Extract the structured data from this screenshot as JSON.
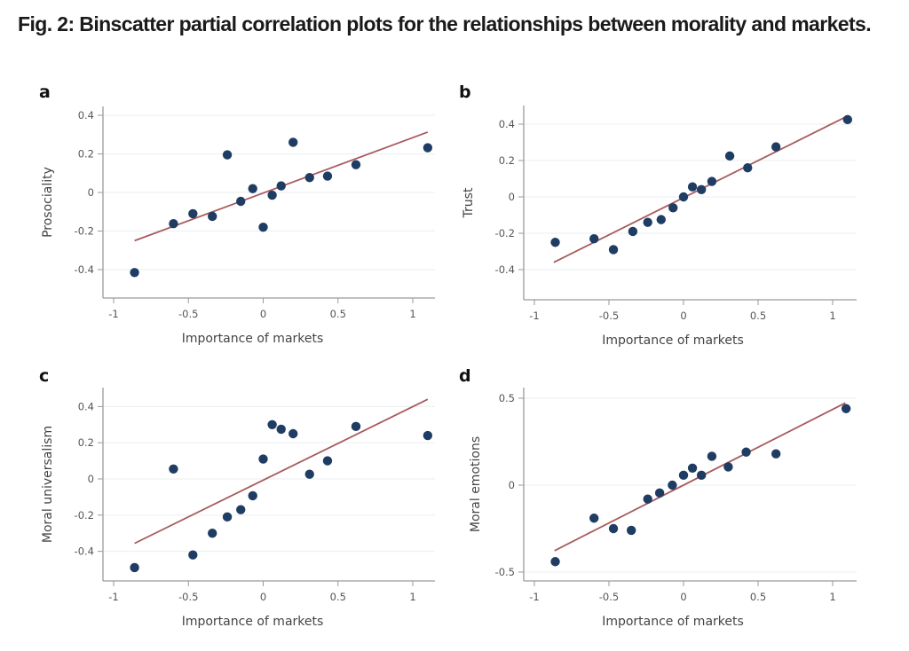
{
  "figure": {
    "title": "Fig. 2: Binscatter partial correlation plots for the relationships between morality and markets.",
    "colors": {
      "points": "#1f3d63",
      "fit_line": "#a85a5e",
      "axis": "#9a9a9a",
      "grid": "#eef1f2",
      "text": "#555555"
    }
  },
  "chart_data": [
    {
      "panel": "a",
      "type": "scatter",
      "title": "",
      "xlabel": "Importance of markets",
      "ylabel": "Prosociality",
      "xticks": [
        -1,
        -0.5,
        0,
        0.5,
        1
      ],
      "xtick_labels": [
        "-1",
        "-0.5",
        "0",
        "0.5",
        "1"
      ],
      "yticks": [
        -0.4,
        -0.2,
        0,
        0.2,
        0.4
      ],
      "ytick_labels": [
        "-0.4",
        "-0.2",
        "0",
        "0.2",
        "0.4"
      ],
      "grid": true,
      "points": [
        [
          -0.86,
          -0.415
        ],
        [
          -0.6,
          -0.162
        ],
        [
          -0.47,
          -0.11
        ],
        [
          -0.34,
          -0.124
        ],
        [
          -0.24,
          0.195
        ],
        [
          -0.15,
          -0.046
        ],
        [
          -0.07,
          0.02
        ],
        [
          0.0,
          -0.18
        ],
        [
          0.06,
          -0.014
        ],
        [
          0.12,
          0.034
        ],
        [
          0.2,
          0.26
        ],
        [
          0.31,
          0.077
        ],
        [
          0.43,
          0.085
        ],
        [
          0.62,
          0.144
        ],
        [
          1.1,
          0.232
        ]
      ],
      "fit_line": [
        [
          -0.86,
          -0.25
        ],
        [
          1.1,
          0.313
        ]
      ]
    },
    {
      "panel": "b",
      "type": "scatter",
      "title": "",
      "xlabel": "Importance of markets",
      "ylabel": "Trust",
      "xticks": [
        -1,
        -0.5,
        0,
        0.5,
        1
      ],
      "xtick_labels": [
        "-1",
        "-0.5",
        "0",
        "0.5",
        "1"
      ],
      "yticks": [
        -0.4,
        -0.2,
        0,
        0.2,
        0.4
      ],
      "ytick_labels": [
        "-0.4",
        "-0.2",
        "0",
        "0.2",
        "0.4"
      ],
      "grid": true,
      "points": [
        [
          -0.86,
          -0.25
        ],
        [
          -0.6,
          -0.23
        ],
        [
          -0.47,
          -0.29
        ],
        [
          -0.34,
          -0.19
        ],
        [
          -0.24,
          -0.14
        ],
        [
          -0.15,
          -0.125
        ],
        [
          -0.07,
          -0.06
        ],
        [
          0.0,
          0.0
        ],
        [
          0.06,
          0.055
        ],
        [
          0.12,
          0.04
        ],
        [
          0.19,
          0.085
        ],
        [
          0.31,
          0.225
        ],
        [
          0.43,
          0.16
        ],
        [
          0.62,
          0.275
        ],
        [
          1.1,
          0.425
        ]
      ],
      "fit_line": [
        [
          -0.87,
          -0.36
        ],
        [
          1.1,
          0.445
        ]
      ]
    },
    {
      "panel": "c",
      "type": "scatter",
      "title": "",
      "xlabel": "Importance of markets",
      "ylabel": "Moral universalism",
      "xticks": [
        -1,
        -0.5,
        0,
        0.5,
        1
      ],
      "xtick_labels": [
        "-1",
        "-0.5",
        "0",
        "0.5",
        "1"
      ],
      "yticks": [
        -0.4,
        -0.2,
        0,
        0.2,
        0.4
      ],
      "ytick_labels": [
        "-0.4",
        "-0.2",
        "0",
        "0.2",
        "0.4"
      ],
      "grid": true,
      "points": [
        [
          -0.86,
          -0.49
        ],
        [
          -0.6,
          0.055
        ],
        [
          -0.47,
          -0.42
        ],
        [
          -0.34,
          -0.3
        ],
        [
          -0.24,
          -0.21
        ],
        [
          -0.15,
          -0.17
        ],
        [
          -0.07,
          -0.093
        ],
        [
          0.0,
          0.11
        ],
        [
          0.06,
          0.3
        ],
        [
          0.12,
          0.275
        ],
        [
          0.2,
          0.25
        ],
        [
          0.31,
          0.026
        ],
        [
          0.43,
          0.1
        ],
        [
          0.62,
          0.29
        ],
        [
          1.1,
          0.24
        ]
      ],
      "fit_line": [
        [
          -0.86,
          -0.356
        ],
        [
          1.1,
          0.44
        ]
      ]
    },
    {
      "panel": "d",
      "type": "scatter",
      "title": "",
      "xlabel": "Importance of markets",
      "ylabel": "Moral emotions",
      "xticks": [
        -1,
        -0.5,
        0,
        0.5,
        1
      ],
      "xtick_labels": [
        "-1",
        "-0.5",
        "0",
        "0.5",
        "1"
      ],
      "yticks": [
        -0.5,
        0,
        0.5
      ],
      "ytick_labels": [
        "-0.5",
        "0",
        "0.5"
      ],
      "grid": true,
      "points": [
        [
          -0.86,
          -0.44
        ],
        [
          -0.6,
          -0.19
        ],
        [
          -0.47,
          -0.25
        ],
        [
          -0.35,
          -0.26
        ],
        [
          -0.24,
          -0.08
        ],
        [
          -0.16,
          -0.045
        ],
        [
          -0.075,
          0.0
        ],
        [
          0.0,
          0.057
        ],
        [
          0.06,
          0.098
        ],
        [
          0.12,
          0.057
        ],
        [
          0.19,
          0.166
        ],
        [
          0.3,
          0.105
        ],
        [
          0.42,
          0.19
        ],
        [
          0.62,
          0.18
        ],
        [
          1.09,
          0.44
        ]
      ],
      "fit_line": [
        [
          -0.865,
          -0.377
        ],
        [
          1.085,
          0.473
        ]
      ]
    }
  ]
}
